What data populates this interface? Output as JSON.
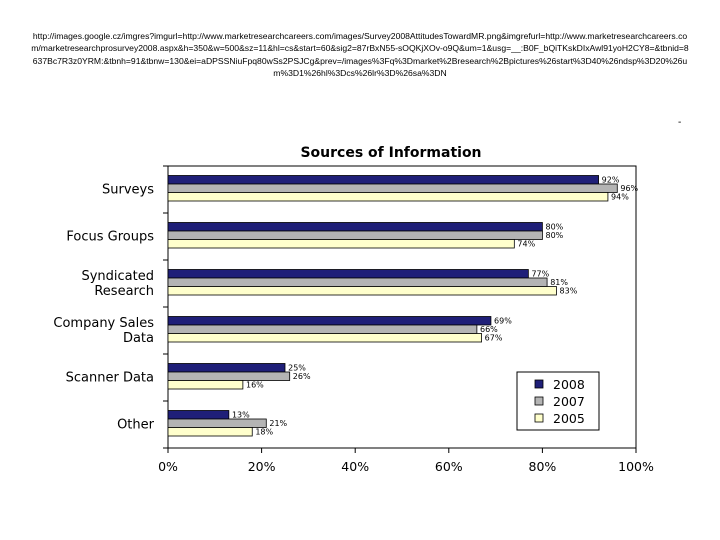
{
  "page": {
    "url_text": "http://images.google.cz/imgres?imgurl=http://www.marketresearchcareers.com/images/Survey2008AttitudesTowardMR.png&imgrefurl=http://www.marketresearchcareers.com/marketresearchprosurvey2008.aspx&h=350&w=500&sz=11&hl=cs&start=60&sig2=87rBxN55-sOQKjXOv-o9Q&um=1&usg=__:B0F_bQiTKskDIxAwl91yoH2CY8=&tbnid=8637Bc7R3z0YRM:&tbnh=91&tbnw=130&ei=aDPSSNiuFpq80wSs2PSJCg&prev=/images%3Fq%3Dmarket%2Bresearch%2Bpictures%26start%3D40%26ndsp%3D20%26um%3D1%26hl%3Dcs%26lr%3D%26sa%3DN",
    "corner_mark": "-"
  },
  "chart_data": {
    "type": "bar",
    "orientation": "horizontal",
    "title": "Sources of Information",
    "categories": [
      "Surveys",
      "Focus Groups",
      "Syndicated Research",
      "Company Sales Data",
      "Scanner Data",
      "Other"
    ],
    "category_lines": [
      [
        "Surveys"
      ],
      [
        "Focus Groups"
      ],
      [
        "Syndicated",
        "Research"
      ],
      [
        "Company Sales",
        "Data"
      ],
      [
        "Scanner Data"
      ],
      [
        "Other"
      ]
    ],
    "series": [
      {
        "name": "2008",
        "color": "#1f1f78",
        "values": [
          92,
          80,
          77,
          69,
          25,
          13
        ],
        "labels": [
          "92%",
          "80%",
          "77%",
          "69%",
          "25%",
          "13%"
        ]
      },
      {
        "name": "2007",
        "color": "#b4b4b4",
        "values": [
          96,
          80,
          81,
          66,
          26,
          21
        ],
        "labels": [
          "96%",
          "80%",
          "81%",
          "66%",
          "26%",
          "21%"
        ]
      },
      {
        "name": "2005",
        "color": "#ffffcc",
        "values": [
          94,
          74,
          83,
          67,
          16,
          18
        ],
        "labels": [
          "94%",
          "74%",
          "83%",
          "67%",
          "16%",
          "18%"
        ]
      }
    ],
    "xlim": [
      0,
      100
    ],
    "xticks": [
      "0%",
      "20%",
      "40%",
      "60%",
      "80%",
      "100%"
    ],
    "xtick_values": [
      0,
      20,
      40,
      60,
      80,
      100
    ],
    "legend": {
      "position": "bottom-right",
      "entries": [
        "2008",
        "2007",
        "2005"
      ]
    },
    "grid": false,
    "border_color": "#000000"
  }
}
